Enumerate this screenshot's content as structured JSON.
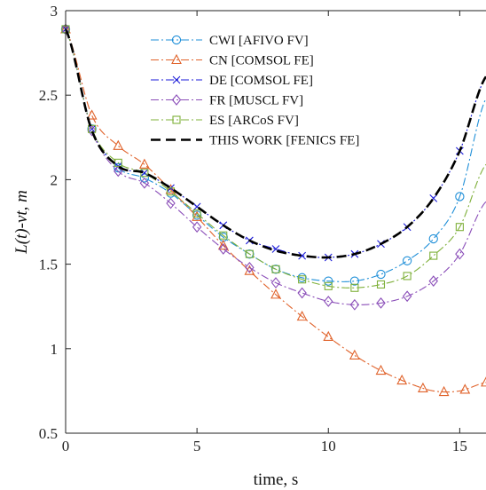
{
  "chart_data": {
    "type": "line",
    "xlabel": "time, s",
    "ylabel": "L(t)-vt, m",
    "xlim": [
      0,
      16
    ],
    "ylim": [
      0.5,
      3
    ],
    "xticks": [
      0,
      5,
      10,
      15
    ],
    "yticks": [
      0.5,
      1,
      1.5,
      2,
      2.5,
      3
    ],
    "xtick_labels": [
      "0",
      "5",
      "10",
      "15"
    ],
    "ytick_labels": [
      "0.5",
      "1",
      "1.5",
      "2",
      "2.5",
      "3"
    ],
    "grid": false,
    "legend_position": "top-center",
    "series": [
      {
        "name": "CWI [AFIVO FV]",
        "color": "#1f8fd8",
        "marker": "circle",
        "line_style": "dashdot",
        "x": [
          0,
          1,
          2,
          3,
          4,
          5,
          6,
          7,
          8,
          9,
          10,
          11,
          12,
          13,
          14,
          15,
          16
        ],
        "y": [
          2.89,
          2.3,
          2.07,
          2.01,
          1.92,
          1.79,
          1.66,
          1.56,
          1.47,
          1.42,
          1.4,
          1.4,
          1.44,
          1.52,
          1.65,
          1.9,
          2.48
        ],
        "marker_x": [
          0,
          1,
          2,
          3,
          4,
          5,
          6,
          7,
          8,
          9,
          10,
          11,
          12,
          13,
          14,
          15
        ]
      },
      {
        "name": "CN [COMSOL FE]",
        "color": "#e0622a",
        "marker": "triangle",
        "line_style": "dashdot",
        "x": [
          0,
          1,
          2,
          3,
          4,
          5,
          6,
          7,
          8,
          9,
          10,
          11,
          12,
          13,
          14,
          15,
          16
        ],
        "y": [
          2.89,
          2.38,
          2.2,
          2.09,
          1.94,
          1.78,
          1.61,
          1.46,
          1.32,
          1.19,
          1.07,
          0.96,
          0.87,
          0.8,
          0.75,
          0.75,
          0.8
        ],
        "marker_x": [
          0,
          1,
          2,
          3,
          4,
          5,
          6,
          7,
          8,
          9,
          10,
          11,
          12,
          12.8,
          13.6,
          14.4,
          15.2,
          16
        ]
      },
      {
        "name": "DE [COMSOL FE]",
        "color": "#1a1ad8",
        "marker": "x",
        "line_style": "dashdot",
        "x": [
          0,
          1,
          2,
          3,
          4,
          5,
          6,
          7,
          8,
          9,
          10,
          11,
          12,
          13,
          14,
          15,
          16
        ],
        "y": [
          2.89,
          2.3,
          2.08,
          2.04,
          1.95,
          1.84,
          1.73,
          1.64,
          1.59,
          1.55,
          1.54,
          1.56,
          1.62,
          1.72,
          1.89,
          2.17,
          2.61
        ],
        "marker_x": [
          0,
          1,
          2,
          3,
          4,
          5,
          6,
          7,
          8,
          9,
          10,
          11,
          12,
          13,
          14,
          15
        ]
      },
      {
        "name": "FR [MUSCL FV]",
        "color": "#8a4db8",
        "marker": "diamond",
        "line_style": "dashdot",
        "x": [
          0,
          1,
          2,
          3,
          4,
          5,
          6,
          7,
          8,
          9,
          10,
          11,
          12,
          13,
          14,
          15,
          16
        ],
        "y": [
          2.89,
          2.29,
          2.05,
          1.98,
          1.86,
          1.72,
          1.59,
          1.48,
          1.39,
          1.33,
          1.28,
          1.26,
          1.27,
          1.31,
          1.4,
          1.56,
          1.87
        ],
        "marker_x": [
          0,
          1,
          2,
          3,
          4,
          5,
          6,
          7,
          8,
          9,
          10,
          11,
          12,
          13,
          14,
          15
        ]
      },
      {
        "name": "ES [ARCoS FV]",
        "color": "#7fb03a",
        "marker": "square",
        "line_style": "dashdot",
        "x": [
          0,
          1,
          2,
          3,
          4,
          5,
          6,
          7,
          8,
          9,
          10,
          11,
          12,
          13,
          14,
          15,
          16
        ],
        "y": [
          2.89,
          2.3,
          2.1,
          2.04,
          1.93,
          1.8,
          1.67,
          1.56,
          1.47,
          1.41,
          1.37,
          1.36,
          1.38,
          1.43,
          1.55,
          1.72,
          2.09
        ],
        "marker_x": [
          0,
          1,
          2,
          3,
          4,
          5,
          6,
          7,
          8,
          9,
          10,
          11,
          12,
          13,
          14,
          15
        ]
      },
      {
        "name": "THIS WORK [FENICS FE]",
        "color": "#000000",
        "marker": "none",
        "line_style": "dashed",
        "x": [
          0,
          1,
          2,
          3,
          4,
          5,
          6,
          7,
          8,
          9,
          10,
          11,
          12,
          13,
          14,
          15,
          16
        ],
        "y": [
          2.89,
          2.29,
          2.08,
          2.04,
          1.95,
          1.84,
          1.73,
          1.64,
          1.58,
          1.55,
          1.54,
          1.56,
          1.62,
          1.72,
          1.89,
          2.17,
          2.61
        ],
        "marker_x": []
      }
    ]
  }
}
